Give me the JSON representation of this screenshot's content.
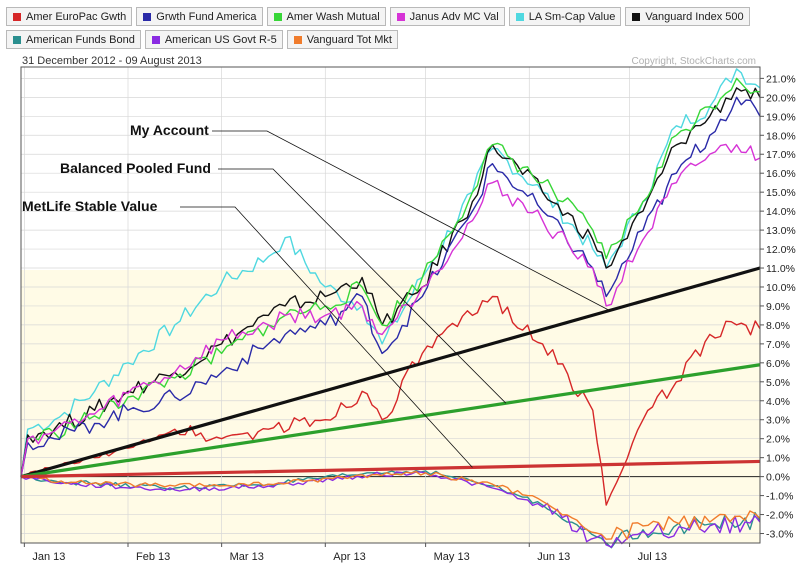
{
  "legend": [
    {
      "name": "Amer EuroPac Gwth",
      "color": "#d62728"
    },
    {
      "name": "Grwth Fund America",
      "color": "#2a2aa8"
    },
    {
      "name": "Amer Wash Mutual",
      "color": "#37d637"
    },
    {
      "name": "Janus Adv MC Val",
      "color": "#d633d6"
    },
    {
      "name": "LA Sm-Cap Value",
      "color": "#4fd8e0"
    },
    {
      "name": "Vanguard Index 500",
      "color": "#111111"
    },
    {
      "name": "American Funds Bond",
      "color": "#2a8f8f"
    },
    {
      "name": "American US Govt R-5",
      "color": "#8a2be2"
    },
    {
      "name": "Vanguard Tot Mkt",
      "color": "#f07c2c"
    }
  ],
  "date_range": "31 December 2012 - 09 August 2013",
  "copyright": "Copyright, StockCharts.com",
  "annotations": [
    {
      "text": "My Account",
      "target": "My Account line"
    },
    {
      "text": "Balanced Pooled Fund",
      "target": "Balanced Pooled Fund line"
    },
    {
      "text": "MetLife Stable Value",
      "target": "MetLife Stable Value line"
    }
  ],
  "chart_data": {
    "type": "line",
    "y_unit": "%",
    "ylim": [
      -3.5,
      21.6
    ],
    "y_ticks": [
      21,
      20,
      19,
      18,
      17,
      16,
      15,
      14,
      13,
      12,
      11,
      10,
      9,
      8,
      7,
      6,
      5,
      4,
      3,
      2,
      1,
      0,
      -1,
      -2,
      -3
    ],
    "y_tick_labels": [
      "21.0%",
      "20.0%",
      "19.0%",
      "18.0%",
      "17.0%",
      "16.0%",
      "15.0%",
      "14.0%",
      "13.0%",
      "12.0%",
      "11.0%",
      "10.0%",
      "9.0%",
      "8.0%",
      "7.0%",
      "6.0%",
      "5.0%",
      "4.0%",
      "3.0%",
      "2.0%",
      "1.0%",
      "0.0%",
      "-1.0%",
      "-2.0%",
      "-3.0%"
    ],
    "x_ticks": [
      {
        "label": "Jan 13",
        "date": "2013-01-01"
      },
      {
        "label": "Feb 13",
        "date": "2013-02-01"
      },
      {
        "label": "Mar 13",
        "date": "2013-03-01"
      },
      {
        "label": "Apr 13",
        "date": "2013-04-01"
      },
      {
        "label": "May 13",
        "date": "2013-05-01"
      },
      {
        "label": "Jun 13",
        "date": "2013-06-01"
      },
      {
        "label": "Jul 13",
        "date": "2013-07-01"
      }
    ],
    "x_range": [
      "2012-12-31",
      "2013-08-09"
    ],
    "grid": true,
    "zero_line": true,
    "series": [
      {
        "name": "LA Sm-Cap Value",
        "color": "#4fd8e0",
        "points": [
          [
            "2012-12-31",
            0
          ],
          [
            "2013-01-02",
            2.5
          ],
          [
            "2013-01-10",
            3.0
          ],
          [
            "2013-01-22",
            4.5
          ],
          [
            "2013-02-01",
            6.0
          ],
          [
            "2013-02-15",
            8.0
          ],
          [
            "2013-03-01",
            10.2
          ],
          [
            "2013-03-15",
            11.6
          ],
          [
            "2013-03-20",
            12.6
          ],
          [
            "2013-04-01",
            10.0
          ],
          [
            "2013-04-12",
            9.0
          ],
          [
            "2013-04-18",
            7.0
          ],
          [
            "2013-04-30",
            10.5
          ],
          [
            "2013-05-15",
            15.0
          ],
          [
            "2013-05-21",
            17.3
          ],
          [
            "2013-06-05",
            15.0
          ],
          [
            "2013-06-20",
            12.0
          ],
          [
            "2013-06-24",
            11.0
          ],
          [
            "2013-07-05",
            14.5
          ],
          [
            "2013-07-15",
            18.5
          ],
          [
            "2013-07-25",
            19.5
          ],
          [
            "2013-08-02",
            21.5
          ],
          [
            "2013-08-09",
            20.5
          ]
        ]
      },
      {
        "name": "Vanguard Index 500",
        "color": "#111111",
        "points": [
          [
            "2012-12-31",
            0
          ],
          [
            "2013-01-02",
            2.2
          ],
          [
            "2013-01-10",
            2.5
          ],
          [
            "2013-01-22",
            3.5
          ],
          [
            "2013-02-01",
            4.5
          ],
          [
            "2013-02-15",
            5.5
          ],
          [
            "2013-03-01",
            7.0
          ],
          [
            "2013-03-15",
            8.5
          ],
          [
            "2013-03-20",
            9.0
          ],
          [
            "2013-04-01",
            9.5
          ],
          [
            "2013-04-12",
            10.5
          ],
          [
            "2013-04-18",
            8.0
          ],
          [
            "2013-04-30",
            10.0
          ],
          [
            "2013-05-15",
            14.5
          ],
          [
            "2013-05-21",
            17.5
          ],
          [
            "2013-06-05",
            15.0
          ],
          [
            "2013-06-20",
            12.5
          ],
          [
            "2013-06-24",
            11.0
          ],
          [
            "2013-07-05",
            14.0
          ],
          [
            "2013-07-15",
            17.5
          ],
          [
            "2013-07-25",
            19.0
          ],
          [
            "2013-08-02",
            20.5
          ],
          [
            "2013-08-09",
            20.0
          ]
        ]
      },
      {
        "name": "Amer Wash Mutual",
        "color": "#37d637",
        "points": [
          [
            "2012-12-31",
            0
          ],
          [
            "2013-01-02",
            2.0
          ],
          [
            "2013-01-10",
            2.3
          ],
          [
            "2013-01-22",
            3.2
          ],
          [
            "2013-02-01",
            4.2
          ],
          [
            "2013-02-15",
            5.2
          ],
          [
            "2013-03-01",
            6.5
          ],
          [
            "2013-03-15",
            8.0
          ],
          [
            "2013-03-20",
            8.5
          ],
          [
            "2013-04-01",
            9.0
          ],
          [
            "2013-04-12",
            10.0
          ],
          [
            "2013-04-18",
            8.0
          ],
          [
            "2013-04-30",
            10.5
          ],
          [
            "2013-05-15",
            15.0
          ],
          [
            "2013-05-21",
            17.5
          ],
          [
            "2013-06-05",
            15.5
          ],
          [
            "2013-06-20",
            13.0
          ],
          [
            "2013-06-24",
            11.5
          ],
          [
            "2013-07-05",
            14.5
          ],
          [
            "2013-07-15",
            18.0
          ],
          [
            "2013-07-25",
            19.5
          ],
          [
            "2013-08-02",
            21.0
          ],
          [
            "2013-08-09",
            20.3
          ]
        ]
      },
      {
        "name": "Grwth Fund America",
        "color": "#2a2aa8",
        "points": [
          [
            "2012-12-31",
            0
          ],
          [
            "2013-01-02",
            1.8
          ],
          [
            "2013-01-10",
            2.0
          ],
          [
            "2013-01-22",
            2.8
          ],
          [
            "2013-02-01",
            3.5
          ],
          [
            "2013-02-15",
            4.2
          ],
          [
            "2013-03-01",
            5.5
          ],
          [
            "2013-03-15",
            7.0
          ],
          [
            "2013-03-20",
            7.5
          ],
          [
            "2013-04-01",
            8.0
          ],
          [
            "2013-04-12",
            9.5
          ],
          [
            "2013-04-18",
            6.5
          ],
          [
            "2013-04-30",
            9.5
          ],
          [
            "2013-05-15",
            14.0
          ],
          [
            "2013-05-21",
            16.5
          ],
          [
            "2013-06-05",
            14.0
          ],
          [
            "2013-06-20",
            11.0
          ],
          [
            "2013-06-24",
            9.5
          ],
          [
            "2013-07-05",
            13.0
          ],
          [
            "2013-07-15",
            16.0
          ],
          [
            "2013-07-25",
            18.0
          ],
          [
            "2013-08-02",
            20.0
          ],
          [
            "2013-08-09",
            19.0
          ]
        ]
      },
      {
        "name": "Janus Adv MC Val",
        "color": "#d633d6",
        "points": [
          [
            "2012-12-31",
            0
          ],
          [
            "2013-01-02",
            2.0
          ],
          [
            "2013-01-10",
            2.4
          ],
          [
            "2013-01-22",
            3.3
          ],
          [
            "2013-02-01",
            4.4
          ],
          [
            "2013-02-15",
            5.5
          ],
          [
            "2013-03-01",
            7.2
          ],
          [
            "2013-03-15",
            8.0
          ],
          [
            "2013-03-20",
            8.5
          ],
          [
            "2013-04-01",
            8.5
          ],
          [
            "2013-04-12",
            9.0
          ],
          [
            "2013-04-18",
            7.5
          ],
          [
            "2013-04-30",
            10.0
          ],
          [
            "2013-05-15",
            13.5
          ],
          [
            "2013-05-21",
            15.5
          ],
          [
            "2013-06-05",
            13.5
          ],
          [
            "2013-06-20",
            11.0
          ],
          [
            "2013-06-24",
            9.0
          ],
          [
            "2013-07-05",
            12.5
          ],
          [
            "2013-07-15",
            15.5
          ],
          [
            "2013-07-25",
            17.0
          ],
          [
            "2013-08-02",
            17.5
          ],
          [
            "2013-08-09",
            16.8
          ]
        ]
      },
      {
        "name": "Amer EuroPac Gwth",
        "color": "#d62728",
        "points": [
          [
            "2012-12-31",
            0
          ],
          [
            "2013-01-10",
            0.5
          ],
          [
            "2013-01-22",
            1.0
          ],
          [
            "2013-02-01",
            1.5
          ],
          [
            "2013-02-15",
            2.5
          ],
          [
            "2013-03-01",
            2.0
          ],
          [
            "2013-03-15",
            2.5
          ],
          [
            "2013-04-01",
            3.0
          ],
          [
            "2013-04-12",
            4.5
          ],
          [
            "2013-04-18",
            3.0
          ],
          [
            "2013-04-30",
            6.5
          ],
          [
            "2013-05-15",
            8.5
          ],
          [
            "2013-05-21",
            9.5
          ],
          [
            "2013-06-05",
            7.0
          ],
          [
            "2013-06-20",
            3.5
          ],
          [
            "2013-06-24",
            -1.5
          ],
          [
            "2013-07-05",
            3.0
          ],
          [
            "2013-07-15",
            5.0
          ],
          [
            "2013-07-25",
            7.5
          ],
          [
            "2013-08-02",
            8.0
          ],
          [
            "2013-08-09",
            7.8
          ]
        ]
      },
      {
        "name": "American Funds Bond",
        "color": "#2a8f8f",
        "points": [
          [
            "2012-12-31",
            0
          ],
          [
            "2013-01-15",
            -0.3
          ],
          [
            "2013-02-15",
            -0.6
          ],
          [
            "2013-03-15",
            -0.4
          ],
          [
            "2013-04-15",
            0.2
          ],
          [
            "2013-05-01",
            0.3
          ],
          [
            "2013-05-21",
            -0.5
          ],
          [
            "2013-06-05",
            -1.5
          ],
          [
            "2013-06-24",
            -3.5
          ],
          [
            "2013-07-05",
            -2.8
          ],
          [
            "2013-07-25",
            -2.5
          ],
          [
            "2013-08-09",
            -2.3
          ]
        ]
      },
      {
        "name": "American US Govt R-5",
        "color": "#8a2be2",
        "points": [
          [
            "2012-12-31",
            0
          ],
          [
            "2013-01-15",
            -0.4
          ],
          [
            "2013-02-15",
            -0.7
          ],
          [
            "2013-03-15",
            -0.5
          ],
          [
            "2013-04-15",
            0.1
          ],
          [
            "2013-05-01",
            0.2
          ],
          [
            "2013-05-21",
            -0.6
          ],
          [
            "2013-06-05",
            -1.6
          ],
          [
            "2013-06-24",
            -3.6
          ],
          [
            "2013-07-05",
            -2.9
          ],
          [
            "2013-07-25",
            -2.6
          ],
          [
            "2013-08-09",
            -2.4
          ]
        ]
      },
      {
        "name": "Vanguard Tot Mkt",
        "color": "#f07c2c",
        "points": [
          [
            "2012-12-31",
            0
          ],
          [
            "2013-01-15",
            -0.3
          ],
          [
            "2013-02-15",
            -0.5
          ],
          [
            "2013-03-15",
            -0.4
          ],
          [
            "2013-04-15",
            0.1
          ],
          [
            "2013-05-01",
            0.2
          ],
          [
            "2013-05-21",
            -0.4
          ],
          [
            "2013-06-05",
            -1.3
          ],
          [
            "2013-06-24",
            -3.3
          ],
          [
            "2013-07-05",
            -2.6
          ],
          [
            "2013-07-25",
            -2.4
          ],
          [
            "2013-08-09",
            -2.2
          ]
        ]
      }
    ],
    "overlays": [
      {
        "name": "My Account",
        "color": "#111111",
        "points": [
          [
            "2012-12-31",
            0
          ],
          [
            "2013-08-09",
            11.0
          ]
        ]
      },
      {
        "name": "Balanced Pooled Fund",
        "color": "#2ca02c",
        "points": [
          [
            "2012-12-31",
            0
          ],
          [
            "2013-08-09",
            5.9
          ]
        ]
      },
      {
        "name": "MetLife Stable Value",
        "color": "#cc3333",
        "points": [
          [
            "2012-12-31",
            0
          ],
          [
            "2013-08-09",
            0.8
          ]
        ]
      }
    ]
  }
}
